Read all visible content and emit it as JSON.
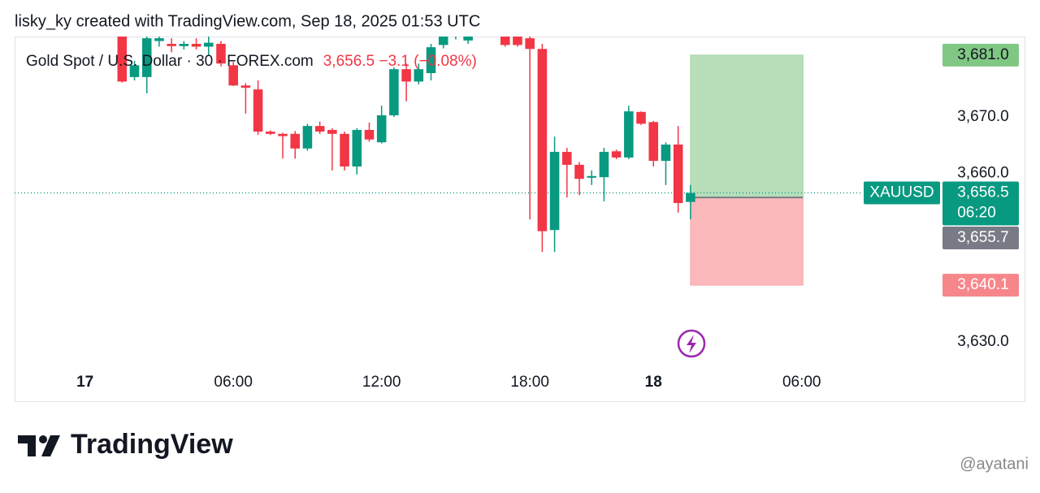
{
  "header": "lisky_ky created with TradingView.com, Sep 18, 2025 01:53 UTC",
  "chart_data": {
    "type": "candlestick",
    "symbol_title": "Gold Spot / U.S. Dollar · 30 · FOREX.com",
    "legend_quote": "3,656.5 −3.1 (−0.08%)",
    "up_color": "#089981",
    "down_color": "#f23645",
    "x": [
      3,
      4,
      5,
      6,
      7,
      8,
      9,
      10,
      11,
      12,
      13,
      14,
      15,
      16,
      17,
      18,
      19,
      20,
      21,
      22,
      23,
      24,
      25,
      26,
      27,
      28,
      29,
      30,
      31,
      32,
      33,
      34,
      35,
      36,
      37,
      38,
      39,
      40,
      41,
      42,
      43,
      44,
      45,
      46,
      47,
      48,
      49
    ],
    "open": [
      3686,
      3677.1,
      3677.1,
      3683.5,
      3683.0,
      3682.6,
      3683,
      3682.5,
      3683,
      3679.2,
      3675.6,
      3674.9,
      3667.4,
      3667.0,
      3667.0,
      3664.4,
      3668.4,
      3667.7,
      3667.0,
      3661.2,
      3667.7,
      3665.5,
      3670.3,
      3678.5,
      3676.3,
      3677.8,
      3682.8,
      3684.5,
      3683.6,
      3686,
      3686,
      3685,
      3685,
      3684,
      3682.1,
      3649.9,
      3663.8,
      3661.5,
      3659.2,
      3659.3,
      3663.9,
      3662.8,
      3670.9,
      3669.1,
      3662.2,
      3665.1,
      3654.9
    ],
    "high": [
      3687,
      3680,
      3685,
      3684.5,
      3684,
      3683.5,
      3684,
      3685,
      3683.5,
      3679.8,
      3676,
      3676.5,
      3667.6,
      3667.2,
      3667.5,
      3668.8,
      3669.2,
      3668.0,
      3667.4,
      3668.0,
      3669.0,
      3672,
      3678.8,
      3679.5,
      3679.5,
      3683,
      3685,
      3686,
      3686,
      3688,
      3688,
      3686,
      3686,
      3685,
      3683,
      3666.5,
      3664.5,
      3662.0,
      3660.5,
      3664.5,
      3664.2,
      3672.0,
      3671.0,
      3669.3,
      3665.5,
      3668.4,
      3657.9
    ],
    "low": [
      3676.1,
      3676.5,
      3674.2,
      3682.5,
      3681.5,
      3682,
      3682,
      3681,
      3679,
      3675.5,
      3670.6,
      3666.8,
      3666.8,
      3662.6,
      3662.6,
      3664.0,
      3667.0,
      3660.5,
      3660.5,
      3659.8,
      3665.6,
      3665.3,
      3670.0,
      3672.8,
      3675.8,
      3676.5,
      3682.2,
      3683.8,
      3683,
      3685,
      3685,
      3682.5,
      3682.5,
      3651.8,
      3646.0,
      3646.0,
      3655.7,
      3656.1,
      3657.9,
      3655.0,
      3662.5,
      3662.5,
      3668.6,
      3661.2,
      3657.9,
      3653.0,
      3651.8
    ],
    "close": [
      3676.3,
      3679.2,
      3684.0,
      3684,
      3682.6,
      3683.0,
      3682.5,
      3683.2,
      3679.5,
      3675.6,
      3675.2,
      3667.4,
      3667.0,
      3666.6,
      3664.4,
      3668.4,
      3667.4,
      3667.0,
      3661.2,
      3667.7,
      3666.0,
      3670.3,
      3678.5,
      3676.3,
      3678.5,
      3682.4,
      3684.3,
      3685,
      3684.3,
      3687,
      3687,
      3682.8,
      3682.8,
      3682.1,
      3649.7,
      3663.8,
      3661.5,
      3659.0,
      3659.5,
      3663.8,
      3662.8,
      3671.0,
      3668.8,
      3662.2,
      3665.1,
      3654.7,
      3656.5
    ],
    "xlim": [
      -5.7,
      76.1
    ],
    "xticks": [
      {
        "value": 0,
        "label": "17"
      },
      {
        "value": 12,
        "label": "06:00"
      },
      {
        "value": 24,
        "label": "12:00"
      },
      {
        "value": 36,
        "label": "18:00"
      },
      {
        "value": 46,
        "label": "18"
      },
      {
        "value": 58,
        "label": "06:00"
      }
    ],
    "bold_xticks": [
      0,
      4
    ],
    "ylim": [
      3625.1,
      3684.3
    ],
    "yticks": [
      {
        "value": 3630,
        "label": "3,630.0"
      },
      {
        "value": 3660,
        "label": "3,660.0"
      },
      {
        "value": 3670,
        "label": "3,670.0"
      }
    ],
    "position": {
      "start": 49,
      "end": 58.1,
      "target": 3681.0,
      "entry": 3655.7,
      "stop": 3640.1,
      "value_labels": {
        "target": "3,681.0",
        "entry": "3,655.7",
        "stop": "3,640.1"
      }
    },
    "last": {
      "symbol": "XAUUSD",
      "price": 3656.5,
      "label": "3,656.5",
      "countdown": "06:20"
    }
  },
  "footer": {
    "brand": "TradingView",
    "watermark": "@ayatani"
  }
}
